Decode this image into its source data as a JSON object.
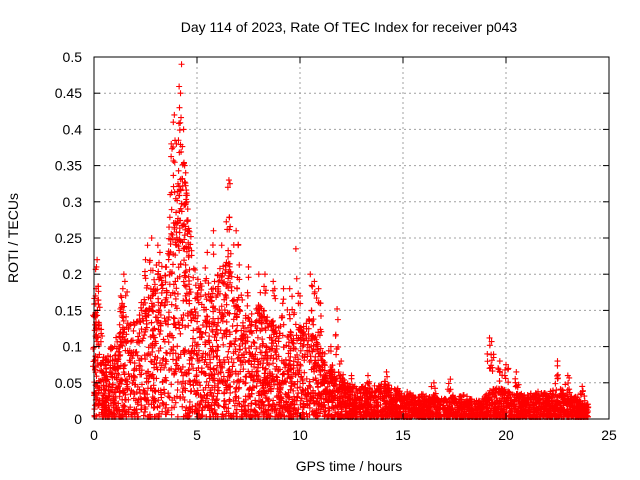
{
  "chart_data": {
    "type": "scatter",
    "title": "Day 114 of 2023, Rate Of TEC Index for receiver p043",
    "xlabel": "GPS time / hours",
    "ylabel": "ROTI / TECUs",
    "xlim": [
      0,
      25
    ],
    "ylim": [
      0,
      0.5
    ],
    "xticks": [
      "0",
      "5",
      "10",
      "15",
      "20",
      "25"
    ],
    "yticks": [
      "0",
      "0.05",
      "0.1",
      "0.15",
      "0.2",
      "0.25",
      "0.3",
      "0.35",
      "0.4",
      "0.45",
      "0.5"
    ],
    "grid": true,
    "marker": "plus",
    "series": [
      {
        "name": "ROTI",
        "color": "#ff0000",
        "envelope": [
          [
            0.0,
            0.06
          ],
          [
            0.2,
            0.2
          ],
          [
            0.5,
            0.08
          ],
          [
            1.0,
            0.11
          ],
          [
            1.5,
            0.13
          ],
          [
            2.0,
            0.14
          ],
          [
            2.5,
            0.18
          ],
          [
            3.0,
            0.2
          ],
          [
            3.5,
            0.22
          ],
          [
            4.0,
            0.3
          ],
          [
            4.3,
            0.38
          ],
          [
            4.6,
            0.28
          ],
          [
            5.0,
            0.2
          ],
          [
            5.5,
            0.17
          ],
          [
            6.0,
            0.2
          ],
          [
            6.5,
            0.22
          ],
          [
            7.0,
            0.18
          ],
          [
            7.5,
            0.15
          ],
          [
            8.0,
            0.16
          ],
          [
            8.5,
            0.14
          ],
          [
            9.0,
            0.13
          ],
          [
            9.5,
            0.12
          ],
          [
            10.0,
            0.13
          ],
          [
            10.5,
            0.14
          ],
          [
            11.0,
            0.09
          ],
          [
            11.5,
            0.07
          ],
          [
            12.0,
            0.06
          ],
          [
            12.5,
            0.045
          ],
          [
            13.0,
            0.045
          ],
          [
            13.5,
            0.045
          ],
          [
            14.0,
            0.05
          ],
          [
            14.5,
            0.045
          ],
          [
            15.0,
            0.04
          ],
          [
            15.5,
            0.035
          ],
          [
            16.0,
            0.035
          ],
          [
            16.5,
            0.03
          ],
          [
            17.0,
            0.03
          ],
          [
            17.5,
            0.03
          ],
          [
            18.0,
            0.035
          ],
          [
            18.5,
            0.025
          ],
          [
            19.0,
            0.035
          ],
          [
            19.5,
            0.045
          ],
          [
            20.0,
            0.04
          ],
          [
            20.5,
            0.035
          ],
          [
            21.0,
            0.035
          ],
          [
            21.5,
            0.04
          ],
          [
            22.0,
            0.035
          ],
          [
            22.5,
            0.045
          ],
          [
            23.0,
            0.035
          ],
          [
            23.5,
            0.03
          ],
          [
            24.0,
            0.02
          ]
        ],
        "peaks": [
          [
            0.05,
            0.13
          ],
          [
            0.08,
            0.17
          ],
          [
            0.1,
            0.18
          ],
          [
            0.12,
            0.21
          ],
          [
            0.15,
            0.22
          ],
          [
            1.3,
            0.17
          ],
          [
            1.4,
            0.18
          ],
          [
            1.45,
            0.2
          ],
          [
            1.5,
            0.19
          ],
          [
            2.5,
            0.22
          ],
          [
            2.6,
            0.24
          ],
          [
            2.8,
            0.25
          ],
          [
            3.1,
            0.24
          ],
          [
            3.2,
            0.23
          ],
          [
            3.7,
            0.31
          ],
          [
            3.75,
            0.38
          ],
          [
            3.85,
            0.41
          ],
          [
            3.9,
            0.42
          ],
          [
            4.0,
            0.38
          ],
          [
            4.1,
            0.385
          ],
          [
            4.15,
            0.43
          ],
          [
            4.2,
            0.45
          ],
          [
            4.25,
            0.49
          ],
          [
            4.35,
            0.4
          ],
          [
            4.4,
            0.35
          ],
          [
            4.45,
            0.34
          ],
          [
            4.5,
            0.3
          ],
          [
            4.55,
            0.29
          ],
          [
            4.6,
            0.26
          ],
          [
            5.5,
            0.23
          ],
          [
            5.8,
            0.26
          ],
          [
            6.2,
            0.24
          ],
          [
            6.5,
            0.32
          ],
          [
            6.55,
            0.33
          ],
          [
            6.6,
            0.325
          ],
          [
            6.9,
            0.26
          ],
          [
            7.0,
            0.24
          ],
          [
            7.5,
            0.21
          ],
          [
            8.0,
            0.2
          ],
          [
            8.3,
            0.2
          ],
          [
            8.7,
            0.19
          ],
          [
            9.2,
            0.18
          ],
          [
            9.5,
            0.18
          ],
          [
            9.8,
            0.235
          ],
          [
            10.0,
            0.17
          ],
          [
            10.5,
            0.2
          ],
          [
            10.7,
            0.19
          ],
          [
            10.9,
            0.18
          ],
          [
            11.0,
            0.16
          ],
          [
            11.8,
            0.152
          ],
          [
            11.5,
            0.1
          ],
          [
            11.2,
            0.09
          ],
          [
            12.0,
            0.08
          ],
          [
            12.5,
            0.06
          ],
          [
            13.3,
            0.06
          ],
          [
            14.2,
            0.065
          ],
          [
            16.5,
            0.05
          ],
          [
            17.3,
            0.055
          ],
          [
            19.2,
            0.112
          ],
          [
            19.3,
            0.107
          ],
          [
            19.7,
            0.08
          ],
          [
            20.0,
            0.075
          ],
          [
            20.5,
            0.065
          ],
          [
            22.5,
            0.08
          ],
          [
            23.0,
            0.06
          ],
          [
            23.7,
            0.045
          ]
        ]
      }
    ]
  }
}
